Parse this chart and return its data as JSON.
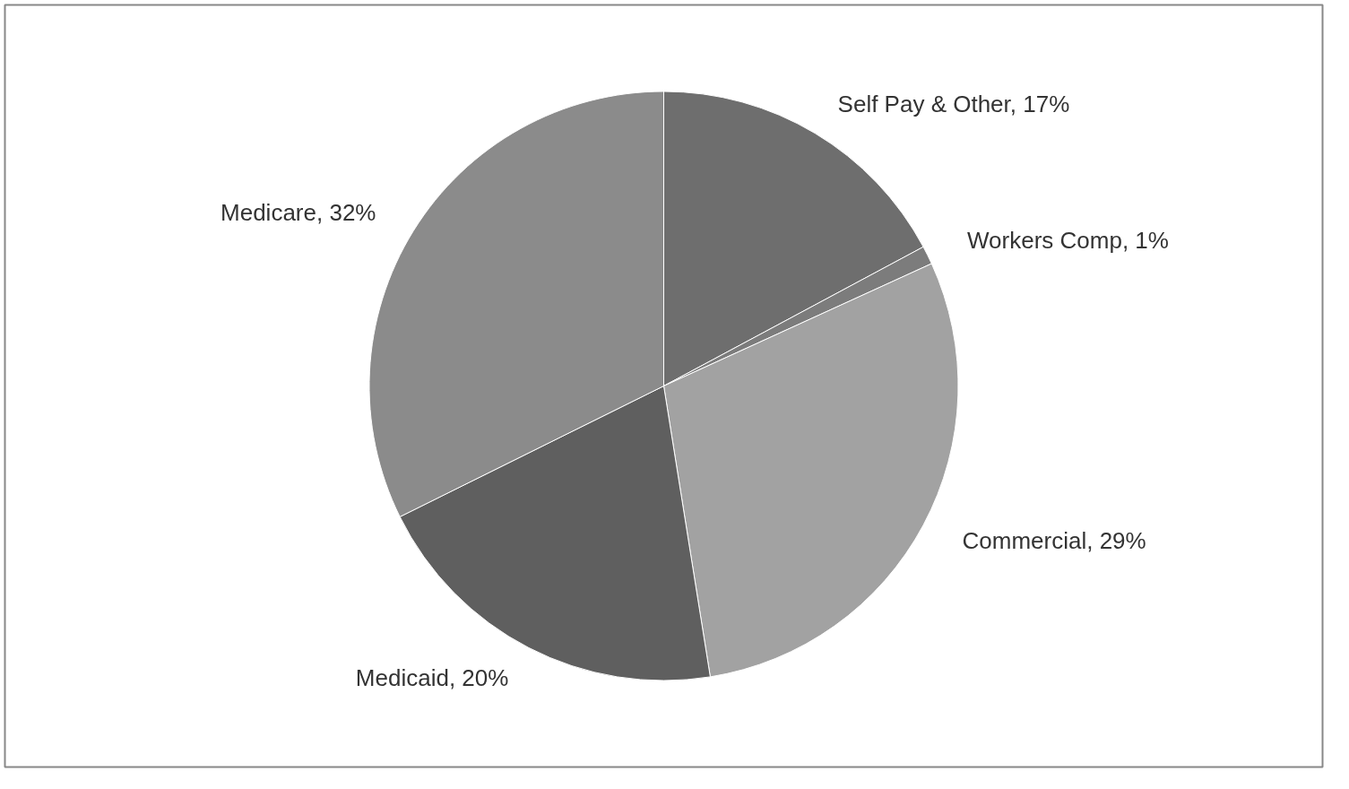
{
  "chart_data": {
    "type": "pie",
    "categories": [
      "Self Pay & Other",
      "Workers Comp",
      "Commercial",
      "Medicaid",
      "Medicare"
    ],
    "values": [
      17,
      1,
      29,
      20,
      32
    ],
    "value_labels": [
      "17%",
      "1%",
      "29%",
      "20%",
      "32%"
    ],
    "colors": [
      "#6e6e6e",
      "#7c7c7c",
      "#a2a2a2",
      "#5f5f5f",
      "#8b8b8b"
    ],
    "legend": false
  }
}
